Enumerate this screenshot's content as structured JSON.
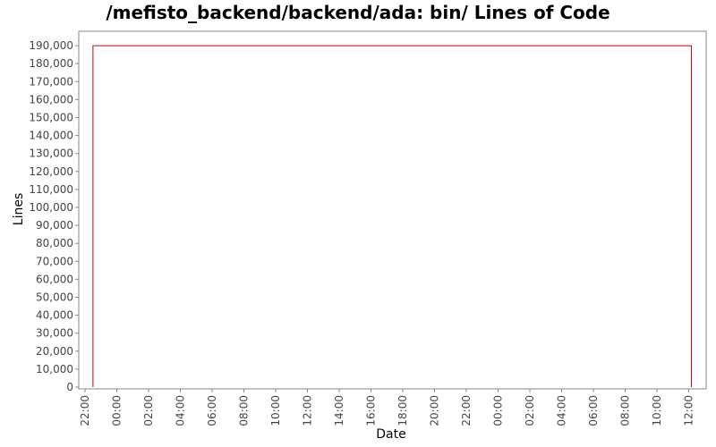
{
  "chart_data": {
    "type": "line",
    "title": "/mefisto_backend/backend/ada: bin/ Lines of Code",
    "xlabel": "Date",
    "ylabel": "Lines",
    "ylim": [
      0,
      198000
    ],
    "yticks": [
      "0",
      "10,000",
      "20,000",
      "30,000",
      "40,000",
      "50,000",
      "60,000",
      "70,000",
      "80,000",
      "90,000",
      "100,000",
      "110,000",
      "120,000",
      "130,000",
      "140,000",
      "150,000",
      "160,000",
      "170,000",
      "180,000",
      "190,000"
    ],
    "xticks": [
      "22:00",
      "00:00",
      "02:00",
      "04:00",
      "06:00",
      "08:00",
      "10:00",
      "12:00",
      "14:00",
      "16:00",
      "18:00",
      "20:00",
      "22:00",
      "00:00",
      "02:00",
      "04:00",
      "06:00",
      "08:00",
      "10:00",
      "12:00"
    ],
    "series": [
      {
        "color": "#cc0000",
        "points": [
          {
            "x": "22:30",
            "y": 0
          },
          {
            "x": "22:30",
            "y": 190000
          },
          {
            "x": "12:10",
            "y": 190000
          },
          {
            "x": "12:10",
            "y": 0
          }
        ]
      }
    ],
    "grid": false,
    "legend": "none"
  }
}
